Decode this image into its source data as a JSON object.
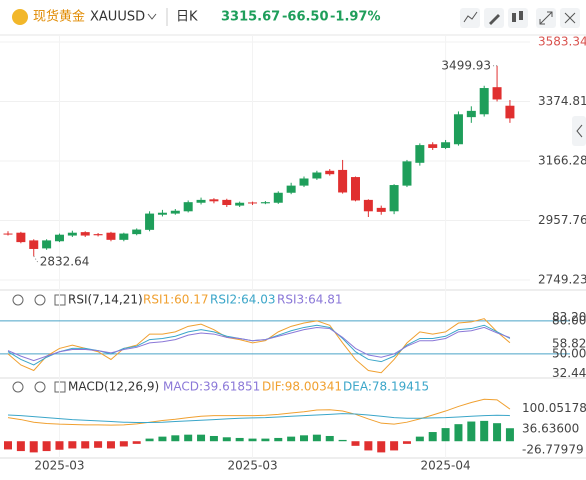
{
  "header": {
    "name": "现货黄金",
    "symbol": "XAUUSD",
    "period": "日K",
    "price": "3315.67",
    "change": "-66.50",
    "change_pct": "-1.97%"
  },
  "chart_data": [
    {
      "type": "candlestick",
      "categories": [
        null,
        null,
        null,
        null,
        "2025-03",
        null,
        null,
        null,
        null,
        null,
        null,
        null,
        null,
        null,
        null,
        null,
        null,
        null,
        null,
        "2025-03",
        null,
        null,
        null,
        null,
        null,
        null,
        null,
        null,
        null,
        null,
        null,
        null,
        null,
        null,
        "2025-04",
        null,
        null,
        null,
        null,
        null
      ],
      "open": [
        2912,
        2915,
        2888,
        2860,
        2885,
        2905,
        2917,
        2910,
        2915,
        2890,
        2910,
        2925,
        2978,
        2982,
        2990,
        3020,
        3032,
        3030,
        3010,
        3021,
        3018,
        3020,
        3055,
        3080,
        3105,
        3132,
        3135,
        3110,
        3030,
        3002,
        2990,
        3080,
        3160,
        3225,
        3212,
        3225,
        3320,
        3330,
        3425,
        3360
      ],
      "high": [
        2920,
        2918,
        2892,
        2892,
        2912,
        2922,
        2920,
        2914,
        2918,
        2915,
        2930,
        2990,
        2995,
        2998,
        3028,
        3038,
        3036,
        3034,
        3024,
        3024,
        3026,
        3060,
        3090,
        3112,
        3132,
        3138,
        3170,
        3112,
        3032,
        3010,
        3085,
        3170,
        3228,
        3232,
        3240,
        3340,
        3358,
        3430,
        3499.93,
        3380
      ],
      "low": [
        2905,
        2878,
        2832.64,
        2855,
        2882,
        2900,
        2900,
        2902,
        2885,
        2885,
        2906,
        2920,
        2972,
        2978,
        2986,
        3014,
        3018,
        3005,
        3005,
        3012,
        3015,
        3016,
        3050,
        3075,
        3100,
        3115,
        3052,
        3025,
        2970,
        2978,
        2980,
        3075,
        3150,
        3205,
        3208,
        3220,
        3300,
        3322,
        3375,
        3300
      ],
      "close": [
        2910,
        2882,
        2858,
        2888,
        2908,
        2915,
        2905,
        2906,
        2890,
        2912,
        2926,
        2982,
        2985,
        2992,
        3022,
        3030,
        3025,
        3012,
        3020,
        3018,
        3022,
        3055,
        3080,
        3105,
        3126,
        3120,
        3056,
        3028,
        2990,
        2988,
        3082,
        3165,
        3222,
        3212,
        3232,
        3330,
        3342,
        3422,
        3382,
        3315.67
      ],
      "up_color": "#1e9e5a",
      "down_color": "#e02f2f",
      "high_tick_color": "#d9534f",
      "ylim": [
        2749.23,
        3583.34
      ],
      "yticks": [
        3583.34,
        3374.81,
        3166.28,
        2957.76,
        2749.23
      ],
      "grid": true
    },
    {
      "type": "line",
      "title": "RSI(7,14,21)",
      "series": [
        {
          "name": "RSI1:60.17",
          "color": "#f0a030",
          "values": [
            50,
            40,
            35,
            48,
            55,
            58,
            55,
            52,
            45,
            55,
            58,
            68,
            68,
            70,
            75,
            77,
            72,
            65,
            63,
            60,
            62,
            70,
            75,
            78,
            80,
            76,
            60,
            45,
            35,
            33,
            45,
            60,
            70,
            68,
            70,
            78,
            79,
            82,
            70,
            60.17
          ]
        },
        {
          "name": "RSI2:64.03",
          "color": "#3ba6c9",
          "values": [
            52,
            45,
            40,
            47,
            52,
            55,
            55,
            53,
            50,
            55,
            57,
            63,
            64,
            66,
            70,
            72,
            70,
            66,
            64,
            62,
            63,
            67,
            71,
            74,
            76,
            74,
            64,
            52,
            45,
            43,
            48,
            58,
            64,
            64,
            66,
            72,
            73,
            76,
            70,
            64.03
          ]
        },
        {
          "name": "RSI3:64.81",
          "color": "#8b78d8",
          "values": [
            53,
            48,
            44,
            48,
            52,
            54,
            54,
            53,
            51,
            54,
            56,
            60,
            61,
            63,
            67,
            69,
            68,
            65,
            64,
            62,
            63,
            66,
            69,
            72,
            74,
            73,
            65,
            55,
            49,
            47,
            50,
            57,
            62,
            62,
            64,
            70,
            71,
            74,
            69,
            64.81
          ]
        }
      ],
      "ylim": [
        30,
        88
      ],
      "yticks": [
        {
          "value": 80,
          "label": "80.00"
        },
        {
          "value": 50,
          "label": "50.00"
        }
      ],
      "level_labels": [
        {
          "value": 83.2,
          "label": "83.20"
        },
        {
          "value": 58.82,
          "label": "58.82"
        },
        {
          "value": 32.44,
          "label": "32.44"
        }
      ],
      "level_color": "#4aa3c8"
    },
    {
      "type": "macd",
      "title": "MACD(12,26,9)",
      "series": [
        {
          "name": "MACD:39.61851",
          "color": "#8b78d8",
          "kind": "bar",
          "values": [
            -25,
            -30,
            -34,
            -30,
            -26,
            -22,
            -22,
            -20,
            -22,
            -16,
            -8,
            8,
            14,
            18,
            20,
            20,
            16,
            12,
            10,
            8,
            8,
            10,
            14,
            18,
            20,
            16,
            4,
            -14,
            -28,
            -34,
            -28,
            -8,
            14,
            28,
            40,
            52,
            60,
            62,
            55,
            39.61851
          ]
        },
        {
          "name": "DIF:98.00341",
          "color": "#f0a030",
          "kind": "line",
          "values": [
            72,
            66,
            58,
            54,
            52,
            51,
            50,
            50,
            49,
            50,
            53,
            58,
            63,
            67,
            72,
            76,
            78,
            78,
            78,
            78,
            79,
            82,
            86,
            90,
            95,
            96,
            92,
            82,
            68,
            55,
            52,
            58,
            68,
            80,
            92,
            106,
            118,
            128,
            126,
            98.00341
          ]
        },
        {
          "name": "DEA:78.19415",
          "color": "#3ba6c9",
          "kind": "line",
          "values": [
            80,
            78,
            75,
            72,
            69,
            66,
            64,
            62,
            60,
            58,
            57,
            57,
            58,
            60,
            62,
            64,
            66,
            68,
            70,
            71,
            72,
            74,
            76,
            78,
            80,
            82,
            84,
            83,
            80,
            76,
            72,
            70,
            70,
            71,
            72,
            74,
            76,
            78,
            79,
            78.19415
          ]
        }
      ],
      "up_color": "#1e9e5a",
      "down_color": "#e02f2f",
      "ylim": [
        -45,
        150
      ],
      "yticks": [
        {
          "value": 100.05178,
          "label": "100.05178"
        },
        {
          "value": 36.636,
          "label": "36.63600"
        },
        {
          "value": -26.77979,
          "label": "-26.77979"
        }
      ]
    }
  ]
}
